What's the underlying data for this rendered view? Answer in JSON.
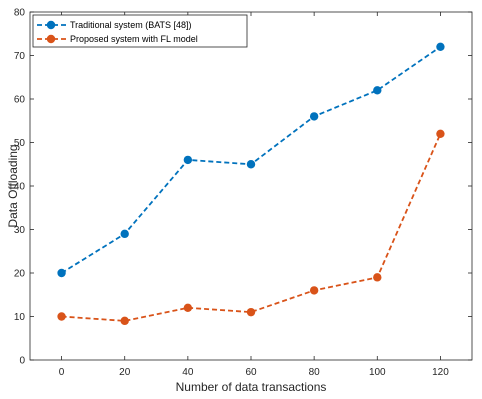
{
  "chart_data": {
    "type": "line",
    "title": "",
    "xlabel": "Number of data transactions",
    "ylabel": "Data Offloading",
    "x": [
      0,
      20,
      40,
      60,
      80,
      100,
      120
    ],
    "xlim": [
      -10,
      130
    ],
    "ylim": [
      0,
      80
    ],
    "xticks": [
      "0",
      "20",
      "40",
      "60",
      "80",
      "100",
      "120"
    ],
    "yticks": [
      "0",
      "10",
      "20",
      "30",
      "40",
      "50",
      "60",
      "70",
      "80"
    ],
    "grid": false,
    "legend_position": "top-left",
    "series": [
      {
        "name": "Traditional system (BATS [48])",
        "values": [
          20,
          29,
          46,
          45,
          56,
          62,
          72
        ],
        "color": "#0072BD",
        "line_style": "dashed",
        "marker": "circle"
      },
      {
        "name": "Proposed system with FL model",
        "values": [
          10,
          9,
          12,
          11,
          16,
          19,
          52
        ],
        "color": "#D95319",
        "line_style": "dashed",
        "marker": "circle"
      }
    ]
  }
}
